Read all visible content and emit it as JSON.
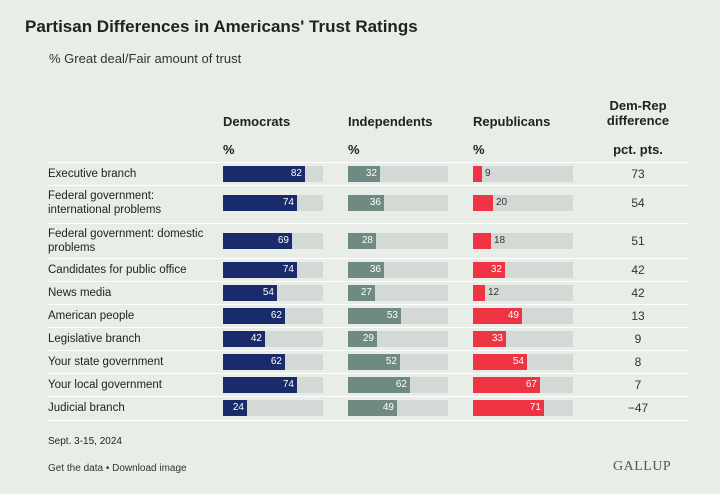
{
  "header": {
    "title": "Partisan Differences in Americans' Trust Ratings",
    "subtitle": "% Great deal/Fair amount of trust"
  },
  "columns": {
    "democrats": "Democrats",
    "independents": "Independents",
    "republicans": "Republicans",
    "diff_line1": "Dem-Rep",
    "diff_line2": "difference",
    "unit_pct": "%",
    "unit_pts": "pct. pts."
  },
  "colors": {
    "democrats": "#1a2b6b",
    "independents": "#6e8a83",
    "republicans": "#ee3342",
    "track": "#d3d9d4",
    "panel": "#e8ede8"
  },
  "chart_data": {
    "type": "bar",
    "categories": [
      "Executive branch",
      "Federal government: international problems",
      "Federal government: domestic problems",
      "Candidates for public office",
      "News media",
      "American people",
      "Legislative branch",
      "Your state government",
      "Your local government",
      "Judicial branch"
    ],
    "series": [
      {
        "name": "Democrats",
        "values": [
          82,
          74,
          69,
          74,
          54,
          62,
          42,
          62,
          74,
          24
        ]
      },
      {
        "name": "Independents",
        "values": [
          32,
          36,
          28,
          36,
          27,
          53,
          29,
          52,
          62,
          49
        ]
      },
      {
        "name": "Republicans",
        "values": [
          9,
          20,
          18,
          32,
          12,
          49,
          33,
          54,
          67,
          71
        ]
      }
    ],
    "difference": [
      "73",
      "54",
      "51",
      "42",
      "42",
      "13",
      "9",
      "8",
      "7",
      "−47"
    ],
    "xlim": [
      0,
      100
    ],
    "title": "Partisan Differences in Americans' Trust Ratings",
    "subtitle": "% Great deal/Fair amount of trust"
  },
  "rows": [
    {
      "label": "Executive branch"
    },
    {
      "label": "Federal government: international problems"
    },
    {
      "label": "Federal government: domestic problems"
    },
    {
      "label": "Candidates for public office"
    },
    {
      "label": "News media"
    },
    {
      "label": "American people"
    },
    {
      "label": "Legislative branch"
    },
    {
      "label": "Your state government"
    },
    {
      "label": "Your local government"
    },
    {
      "label": "Judicial branch"
    }
  ],
  "footer": {
    "date": "Sept. 3-15, 2024",
    "links": "Get the data • Download image",
    "logo": "GALLUP"
  }
}
